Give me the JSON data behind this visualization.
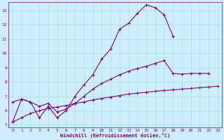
{
  "line1_x": [
    0,
    1,
    2,
    3,
    4,
    5,
    6,
    7,
    8,
    9,
    10,
    11,
    12,
    13,
    14,
    15,
    16,
    17,
    18
  ],
  "line1_y": [
    5.2,
    6.8,
    6.6,
    5.5,
    6.3,
    5.5,
    6.0,
    7.0,
    7.8,
    8.5,
    9.6,
    10.3,
    11.7,
    12.1,
    12.8,
    13.4,
    13.2,
    12.7,
    11.2
  ],
  "line2_x": [
    0,
    1,
    2,
    3,
    4,
    5,
    6,
    7,
    8,
    9,
    10,
    11,
    12,
    13,
    14,
    15,
    16,
    17,
    18,
    19,
    20,
    21,
    22
  ],
  "line2_y": [
    6.6,
    6.8,
    6.6,
    6.3,
    6.5,
    5.9,
    6.1,
    6.5,
    7.0,
    7.5,
    7.9,
    8.2,
    8.5,
    8.75,
    8.95,
    9.1,
    9.3,
    9.5,
    8.6,
    8.55,
    8.6,
    8.6,
    8.6
  ],
  "line3_x": [
    0,
    1,
    2,
    3,
    4,
    5,
    6,
    7,
    8,
    9,
    10,
    11,
    12,
    13,
    14,
    15,
    16,
    17,
    18,
    19,
    20,
    21,
    22,
    23
  ],
  "line3_y": [
    5.2,
    5.5,
    5.8,
    6.0,
    6.15,
    6.25,
    6.35,
    6.5,
    6.6,
    6.75,
    6.85,
    6.95,
    7.05,
    7.15,
    7.22,
    7.28,
    7.35,
    7.4,
    7.45,
    7.5,
    7.55,
    7.6,
    7.65,
    7.7
  ],
  "line_color": "#800080",
  "bg_color": "#cceeff",
  "grid_color": "#aadddd",
  "axis_color": "#800080",
  "xlabel": "Windchill (Refroidissement éolien,°C)",
  "xlim": [
    -0.5,
    23.5
  ],
  "ylim": [
    4.8,
    13.6
  ],
  "yticks": [
    5,
    6,
    7,
    8,
    9,
    10,
    11,
    12,
    13
  ],
  "xticks": [
    0,
    1,
    2,
    3,
    4,
    5,
    6,
    7,
    8,
    9,
    10,
    11,
    12,
    13,
    14,
    15,
    16,
    17,
    18,
    19,
    20,
    21,
    22,
    23
  ]
}
